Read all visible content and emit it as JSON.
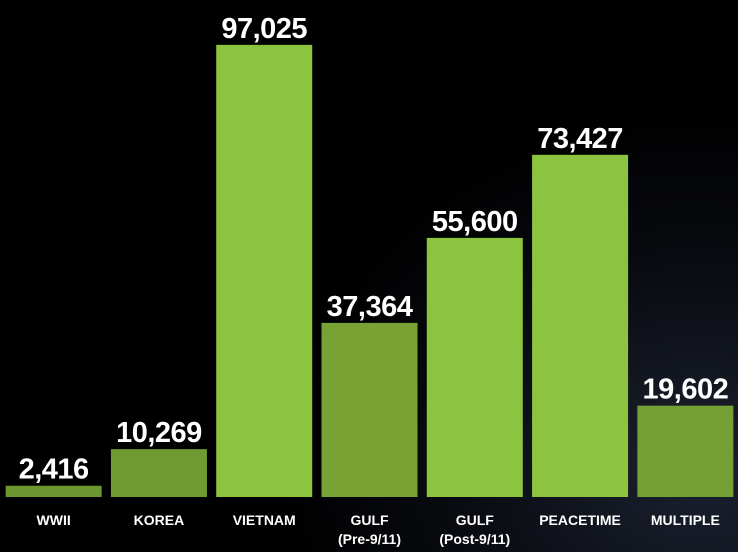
{
  "chart_data": {
    "type": "bar",
    "categories": [
      "WWII",
      "KOREA",
      "VIETNAM",
      "GULF\n(Pre-9/11)",
      "GULF\n(Post-9/11)",
      "PEACETIME",
      "MULTIPLE"
    ],
    "values": [
      2416,
      10269,
      97025,
      37364,
      55600,
      73427,
      19602
    ],
    "value_labels": [
      "2,416",
      "10,269",
      "97,025",
      "37,364",
      "55,600",
      "73,427",
      "19,602"
    ],
    "colors": [
      "#6b9630",
      "#6f9a31",
      "#8cc43f",
      "#78a334",
      "#8cc43f",
      "#8cc43f",
      "#75a033"
    ],
    "ylim": [
      0,
      100000
    ]
  }
}
